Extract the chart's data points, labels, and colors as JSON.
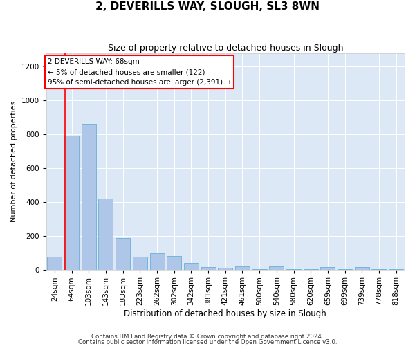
{
  "title": "2, DEVERILLS WAY, SLOUGH, SL3 8WN",
  "subtitle": "Size of property relative to detached houses in Slough",
  "xlabel": "Distribution of detached houses by size in Slough",
  "ylabel": "Number of detached properties",
  "footnote1": "Contains HM Land Registry data © Crown copyright and database right 2024.",
  "footnote2": "Contains public sector information licensed under the Open Government Licence v3.0.",
  "bar_labels": [
    "24sqm",
    "64sqm",
    "103sqm",
    "143sqm",
    "183sqm",
    "223sqm",
    "262sqm",
    "302sqm",
    "342sqm",
    "381sqm",
    "421sqm",
    "461sqm",
    "500sqm",
    "540sqm",
    "580sqm",
    "620sqm",
    "659sqm",
    "699sqm",
    "739sqm",
    "778sqm",
    "818sqm"
  ],
  "bar_values": [
    75,
    790,
    860,
    420,
    185,
    75,
    95,
    80,
    40,
    15,
    10,
    20,
    2,
    18,
    2,
    2,
    15,
    2,
    15,
    2,
    2
  ],
  "bar_color": "#aec7e8",
  "bar_edgecolor": "#6baed6",
  "background_color": "#dce8f5",
  "vline_x": 0.6,
  "vline_color": "red",
  "annotation_text": "2 DEVERILLS WAY: 68sqm\n← 5% of detached houses are smaller (122)\n95% of semi-detached houses are larger (2,391) →",
  "annotation_box_facecolor": "white",
  "annotation_box_edgecolor": "red",
  "ylim": [
    0,
    1280
  ],
  "yticks": [
    0,
    200,
    400,
    600,
    800,
    1000,
    1200
  ],
  "title_fontsize": 11,
  "subtitle_fontsize": 9,
  "xlabel_fontsize": 8.5,
  "ylabel_fontsize": 8,
  "tick_fontsize": 7.5,
  "annot_fontsize": 7.5
}
